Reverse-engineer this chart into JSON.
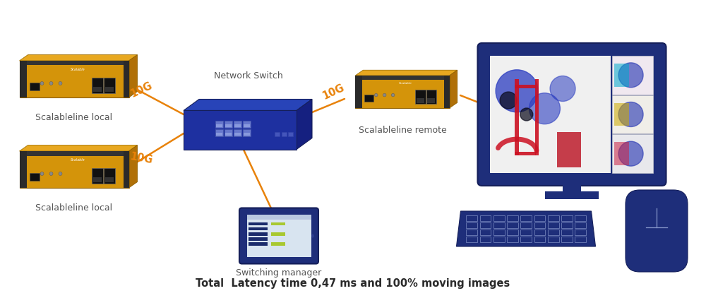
{
  "bg_color": "#ffffff",
  "orange_color": "#E8820A",
  "navy_color": "#1E2E7A",
  "navy_dark": "#151F5A",
  "navy_light": "#2A40A8",
  "gold_color": "#D4940A",
  "gold_light": "#E8A820",
  "dark_panel": "#1A1A1A",
  "label_color": "#555555",
  "text_bold_color": "#2a2a2a",
  "title_text": "Total  Latency time 0,47 ms and 100% moving images",
  "label_local1": "Scalableline local",
  "label_local2": "Scalableline local",
  "label_remote": "Scalableline remote",
  "label_switch": "Network Switch",
  "label_manager": "Switching manager",
  "fig_width": 10.0,
  "fig_height": 4.22
}
